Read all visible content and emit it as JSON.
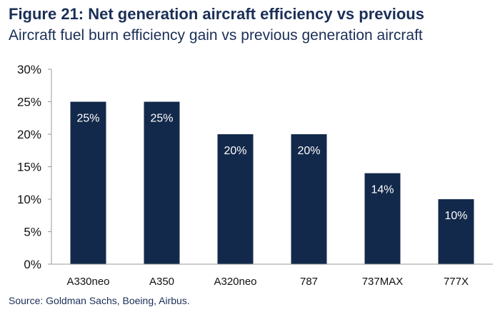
{
  "header": {
    "title": "Figure 21: Net generation aircraft efficiency vs previous",
    "subtitle": "Aircraft fuel burn efficiency gain vs previous generation aircraft"
  },
  "footer": {
    "source": "Source: Goldman Sachs, Boeing, Airbus."
  },
  "colors": {
    "bar": "#13294b",
    "title": "#1b2f57",
    "axis": "#999999"
  },
  "chart_data": {
    "type": "bar",
    "title": "Figure 21: Net generation aircraft efficiency vs previous",
    "subtitle": "Aircraft fuel burn efficiency gain vs previous generation aircraft",
    "xlabel": "",
    "ylabel": "",
    "categories": [
      "A330neo",
      "A350",
      "A320neo",
      "787",
      "737MAX",
      "777X"
    ],
    "values": [
      25,
      25,
      20,
      20,
      14,
      10
    ],
    "data_labels": [
      "25%",
      "25%",
      "20%",
      "20%",
      "14%",
      "10%"
    ],
    "ylim": [
      0,
      30
    ],
    "yticks": [
      0,
      5,
      10,
      15,
      20,
      25,
      30
    ],
    "ytick_labels": [
      "0%",
      "5%",
      "10%",
      "15%",
      "20%",
      "25%",
      "30%"
    ],
    "grid": false,
    "legend": "none"
  }
}
